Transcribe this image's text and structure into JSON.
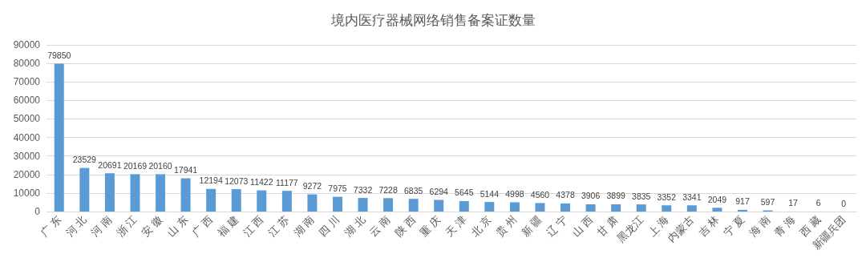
{
  "chart_data": {
    "type": "bar",
    "title": "境内医疗器械网络销售备案证数量",
    "categories": [
      "广 东",
      "河 北",
      "河 南",
      "浙 江",
      "安 徽",
      "山 东",
      "广 西",
      "福 建",
      "江 西",
      "江 苏",
      "湖 南",
      "四 川",
      "湖 北",
      "云 南",
      "陕 西",
      "重 庆",
      "天 津",
      "北 京",
      "贵 州",
      "新 疆",
      "辽 宁",
      "山 西",
      "甘 肃",
      "黑龙江",
      "上 海",
      "内蒙古",
      "吉 林",
      "宁 夏",
      "海 南",
      "青 海",
      "西 藏",
      "新疆兵团"
    ],
    "values": [
      79850,
      23529,
      20691,
      20169,
      20160,
      17941,
      12194,
      12073,
      11422,
      11177,
      9272,
      7975,
      7332,
      7228,
      6835,
      6294,
      5645,
      5144,
      4998,
      4560,
      4378,
      3906,
      3899,
      3835,
      3352,
      3341,
      2049,
      917,
      597,
      17,
      6,
      0
    ],
    "color": "#5b9bd5",
    "ylim": [
      0,
      90000
    ],
    "yticks": [
      0,
      10000,
      20000,
      30000,
      40000,
      50000,
      60000,
      70000,
      80000,
      90000
    ],
    "grid": "y",
    "data_labels": true
  }
}
